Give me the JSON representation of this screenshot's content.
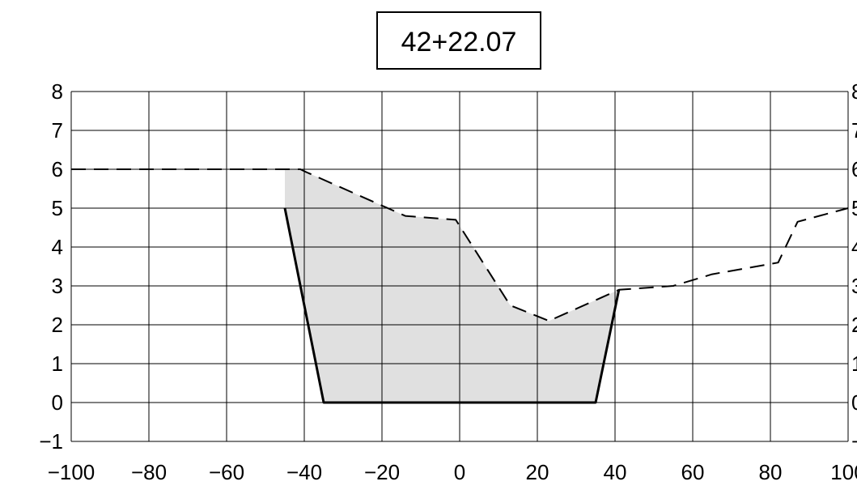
{
  "chart_data": {
    "type": "line",
    "title": "42+22.07",
    "xlabel": "",
    "ylabel": "",
    "xlim": [
      -100,
      100
    ],
    "ylim": [
      -1,
      8
    ],
    "grid": true,
    "x_ticks": [
      -100,
      -80,
      -60,
      -40,
      -20,
      0,
      20,
      40,
      60,
      80,
      100
    ],
    "x_tick_labels": [
      "−100",
      "−80",
      "−60",
      "−40",
      "−20",
      "0",
      "20",
      "40",
      "60",
      "80",
      "100"
    ],
    "y_ticks": [
      -1,
      0,
      1,
      2,
      3,
      4,
      5,
      6,
      7,
      8
    ],
    "y_tick_labels": [
      "−1",
      "0",
      "1",
      "2",
      "3",
      "4",
      "5",
      "6",
      "7",
      "8"
    ],
    "series": [
      {
        "style": "dashed",
        "color": "#000000",
        "x": [
          -100,
          -41,
          -40,
          -14,
          -1,
          13,
          23,
          41,
          55,
          65,
          82,
          87,
          100
        ],
        "y": [
          6,
          6,
          5.95,
          4.8,
          4.7,
          2.5,
          2.1,
          2.9,
          3.0,
          3.3,
          3.6,
          4.65,
          5.0
        ]
      },
      {
        "style": "solid",
        "color": "#000000",
        "x": [
          -45,
          -35,
          35,
          41
        ],
        "y": [
          5.0,
          0,
          0,
          2.9
        ]
      }
    ],
    "fill": {
      "color": "#e0e0e0",
      "x": [
        -45,
        -45,
        -41,
        -40,
        -14,
        -1,
        13,
        23,
        41,
        35,
        -35
      ],
      "y": [
        5.0,
        6.0,
        6.0,
        5.95,
        4.8,
        4.7,
        2.5,
        2.1,
        2.9,
        0,
        0
      ]
    }
  }
}
